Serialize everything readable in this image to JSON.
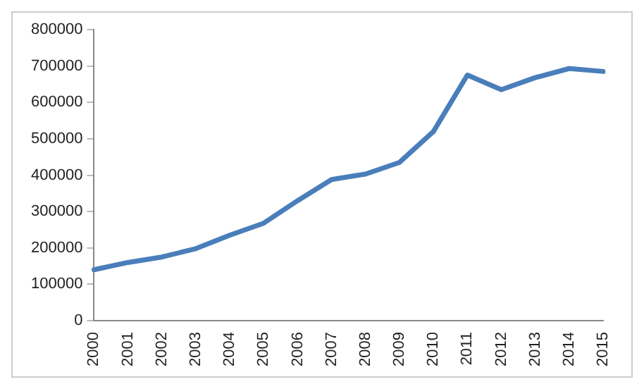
{
  "chart_data": {
    "type": "line",
    "categories": [
      "2000",
      "2001",
      "2002",
      "2003",
      "2004",
      "2005",
      "2006",
      "2007",
      "2008",
      "2009",
      "2010",
      "2011",
      "2012",
      "2013",
      "2014",
      "2015"
    ],
    "series": [
      {
        "color": "#4a7ebb",
        "values": [
          140000,
          160000,
          175000,
          198000,
          235000,
          268000,
          330000,
          388000,
          403000,
          435000,
          520000,
          675000,
          635000,
          668000,
          693000,
          685000
        ]
      }
    ],
    "ylim": [
      0,
      800000
    ],
    "yticks": [
      0,
      100000,
      200000,
      300000,
      400000,
      500000,
      600000,
      700000,
      800000
    ],
    "grid": false,
    "legend": false,
    "marker": "none",
    "line_style": "solid"
  }
}
